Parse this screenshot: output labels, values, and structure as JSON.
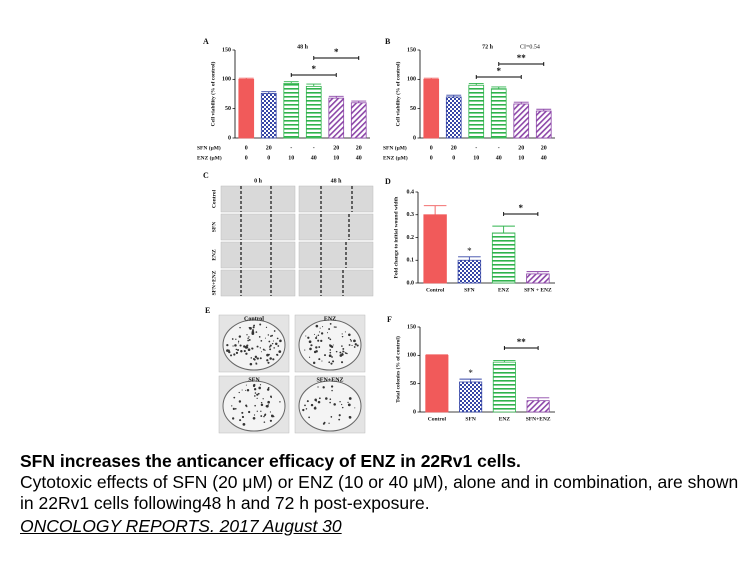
{
  "chart_data": [
    {
      "type": "bar",
      "panel_label": "A",
      "title": "48 h",
      "ylabel": "Cell viability (% of control)",
      "values": [
        100,
        76,
        93,
        88,
        68,
        60
      ],
      "errors": [
        2,
        3,
        3,
        4,
        3,
        3
      ],
      "colors": [
        "#f15a5a",
        "#3646a6",
        "#2fb34c",
        "#2fb34c",
        "#8c46a8",
        "#8c46a8"
      ],
      "hatch": [
        "solid",
        "checker",
        "stripes",
        "stripes",
        "diagonal",
        "diagonal"
      ],
      "ylim": [
        0,
        150
      ],
      "yticks": [
        0,
        50,
        100,
        150
      ],
      "rows": [
        {
          "label": "SFN (μM)",
          "cells": [
            0,
            20,
            "-",
            "-",
            20,
            20
          ]
        },
        {
          "label": "ENZ (μM)",
          "cells": [
            0,
            0,
            10,
            40,
            10,
            40
          ]
        }
      ],
      "annotations": [
        "*",
        "*"
      ]
    },
    {
      "type": "bar",
      "panel_label": "B",
      "title": "72 h",
      "note": "CI=0.54",
      "ylabel": "Cell viability (% of control)",
      "values": [
        100,
        70,
        90,
        84,
        58,
        46
      ],
      "errors": [
        2,
        3,
        3,
        3,
        3,
        3
      ],
      "colors": [
        "#f15a5a",
        "#3646a6",
        "#2fb34c",
        "#2fb34c",
        "#8c46a8",
        "#8c46a8"
      ],
      "hatch": [
        "solid",
        "checker",
        "stripes",
        "stripes",
        "diagonal",
        "diagonal"
      ],
      "ylim": [
        0,
        150
      ],
      "yticks": [
        0,
        50,
        100,
        150
      ],
      "rows": [
        {
          "label": "SFN (μM)",
          "cells": [
            0,
            20,
            "-",
            "-",
            20,
            20
          ]
        },
        {
          "label": "ENZ (μM)",
          "cells": [
            0,
            0,
            10,
            40,
            10,
            40
          ]
        }
      ],
      "annotations": [
        "*",
        "**"
      ]
    },
    {
      "type": "bar",
      "panel_label": "D",
      "ylabel": "Fold change to initial wound width",
      "categories": [
        "Control",
        "SFN",
        "ENZ",
        "SFN + ENZ"
      ],
      "values": [
        0.3,
        0.1,
        0.22,
        0.04
      ],
      "errors": [
        0.04,
        0.015,
        0.03,
        0.01
      ],
      "colors": [
        "#f15a5a",
        "#3646a6",
        "#2fb34c",
        "#8c46a8"
      ],
      "hatch": [
        "solid",
        "checker",
        "stripes",
        "diagonal"
      ],
      "ylim": [
        0,
        0.4
      ],
      "yticks": [
        {
          "value": 0,
          "label": "0.0"
        },
        0.1,
        0.2,
        0.3,
        0.4
      ],
      "annotations": [
        "*",
        "*"
      ]
    },
    {
      "type": "bar",
      "panel_label": "F",
      "ylabel": "Total colonies (% of control)",
      "categories": [
        "Control",
        "SFN",
        "ENZ",
        "SFN+ENZ"
      ],
      "values": [
        100,
        53,
        88,
        20
      ],
      "errors": [
        1,
        5,
        3,
        5
      ],
      "colors": [
        "#f15a5a",
        "#3646a6",
        "#2fb34c",
        "#8c46a8"
      ],
      "hatch": [
        "solid",
        "checker",
        "stripes",
        "diagonal"
      ],
      "ylim": [
        0,
        150
      ],
      "yticks": [
        0,
        50,
        100,
        150
      ],
      "annotations": [
        "*",
        "**"
      ]
    }
  ],
  "images": [
    {
      "panel_label": "C",
      "columns": [
        "0 h",
        "48 h"
      ],
      "rows": [
        "Control",
        "SFN",
        "ENZ",
        "SFN+ENZ"
      ]
    },
    {
      "panel_label": "E",
      "labels": [
        "Control",
        "ENZ",
        "SFN",
        "SFN+ENZ"
      ]
    }
  ],
  "caption": {
    "title": "SFN increases the anticancer efficacy of ENZ in 22Rv1 cells.",
    "body": "Cytotoxic effects of SFN (20 μM) or ENZ (10 or 40 μM), alone and in combination, are shown in 22Rv1 cells following48 h and 72 h post-exposure.",
    "source": "ONCOLOGY REPORTS. 2017 August 30"
  }
}
